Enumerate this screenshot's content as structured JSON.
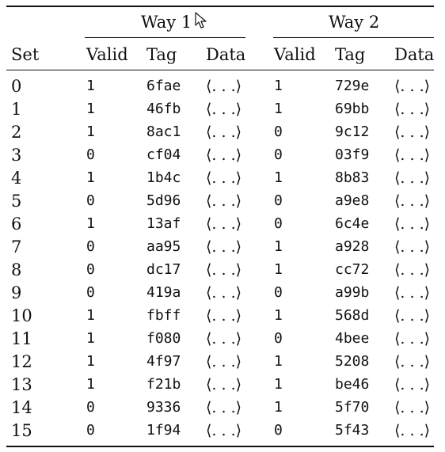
{
  "table": {
    "group_headers": [
      "Way 1",
      "Way 2"
    ],
    "set_header": "Set",
    "way1_columns": [
      "Valid",
      "Tag",
      "Data"
    ],
    "way2_columns": [
      "Valid",
      "Tag",
      "Data"
    ],
    "rows": [
      {
        "set": "0",
        "w1_valid": "1",
        "w1_tag": "6fae",
        "w1_data": "⟨. . .⟩",
        "w2_valid": "1",
        "w2_tag": "729e",
        "w2_data": "⟨. . .⟩"
      },
      {
        "set": "1",
        "w1_valid": "1",
        "w1_tag": "46fb",
        "w1_data": "⟨. . .⟩",
        "w2_valid": "1",
        "w2_tag": "69bb",
        "w2_data": "⟨. . .⟩"
      },
      {
        "set": "2",
        "w1_valid": "1",
        "w1_tag": "8ac1",
        "w1_data": "⟨. . .⟩",
        "w2_valid": "0",
        "w2_tag": "9c12",
        "w2_data": "⟨. . .⟩"
      },
      {
        "set": "3",
        "w1_valid": "0",
        "w1_tag": "cf04",
        "w1_data": "⟨. . .⟩",
        "w2_valid": "0",
        "w2_tag": "03f9",
        "w2_data": "⟨. . .⟩"
      },
      {
        "set": "4",
        "w1_valid": "1",
        "w1_tag": "1b4c",
        "w1_data": "⟨. . .⟩",
        "w2_valid": "1",
        "w2_tag": "8b83",
        "w2_data": "⟨. . .⟩"
      },
      {
        "set": "5",
        "w1_valid": "0",
        "w1_tag": "5d96",
        "w1_data": "⟨. . .⟩",
        "w2_valid": "0",
        "w2_tag": "a9e8",
        "w2_data": "⟨. . .⟩"
      },
      {
        "set": "6",
        "w1_valid": "1",
        "w1_tag": "13af",
        "w1_data": "⟨. . .⟩",
        "w2_valid": "0",
        "w2_tag": "6c4e",
        "w2_data": "⟨. . .⟩"
      },
      {
        "set": "7",
        "w1_valid": "0",
        "w1_tag": "aa95",
        "w1_data": "⟨. . .⟩",
        "w2_valid": "1",
        "w2_tag": "a928",
        "w2_data": "⟨. . .⟩"
      },
      {
        "set": "8",
        "w1_valid": "0",
        "w1_tag": "dc17",
        "w1_data": "⟨. . .⟩",
        "w2_valid": "1",
        "w2_tag": "cc72",
        "w2_data": "⟨. . .⟩"
      },
      {
        "set": "9",
        "w1_valid": "0",
        "w1_tag": "419a",
        "w1_data": "⟨. . .⟩",
        "w2_valid": "0",
        "w2_tag": "a99b",
        "w2_data": "⟨. . .⟩"
      },
      {
        "set": "10",
        "w1_valid": "1",
        "w1_tag": "fbff",
        "w1_data": "⟨. . .⟩",
        "w2_valid": "1",
        "w2_tag": "568d",
        "w2_data": "⟨. . .⟩"
      },
      {
        "set": "11",
        "w1_valid": "1",
        "w1_tag": "f080",
        "w1_data": "⟨. . .⟩",
        "w2_valid": "0",
        "w2_tag": "4bee",
        "w2_data": "⟨. . .⟩"
      },
      {
        "set": "12",
        "w1_valid": "1",
        "w1_tag": "4f97",
        "w1_data": "⟨. . .⟩",
        "w2_valid": "1",
        "w2_tag": "5208",
        "w2_data": "⟨. . .⟩"
      },
      {
        "set": "13",
        "w1_valid": "1",
        "w1_tag": "f21b",
        "w1_data": "⟨. . .⟩",
        "w2_valid": "1",
        "w2_tag": "be46",
        "w2_data": "⟨. . .⟩"
      },
      {
        "set": "14",
        "w1_valid": "0",
        "w1_tag": "9336",
        "w1_data": "⟨. . .⟩",
        "w2_valid": "1",
        "w2_tag": "5f70",
        "w2_data": "⟨. . .⟩"
      },
      {
        "set": "15",
        "w1_valid": "0",
        "w1_tag": "1f94",
        "w1_data": "⟨. . .⟩",
        "w2_valid": "0",
        "w2_tag": "5f43",
        "w2_data": "⟨. . .⟩"
      }
    ]
  },
  "cursor_icon": "mouse-pointer-icon"
}
